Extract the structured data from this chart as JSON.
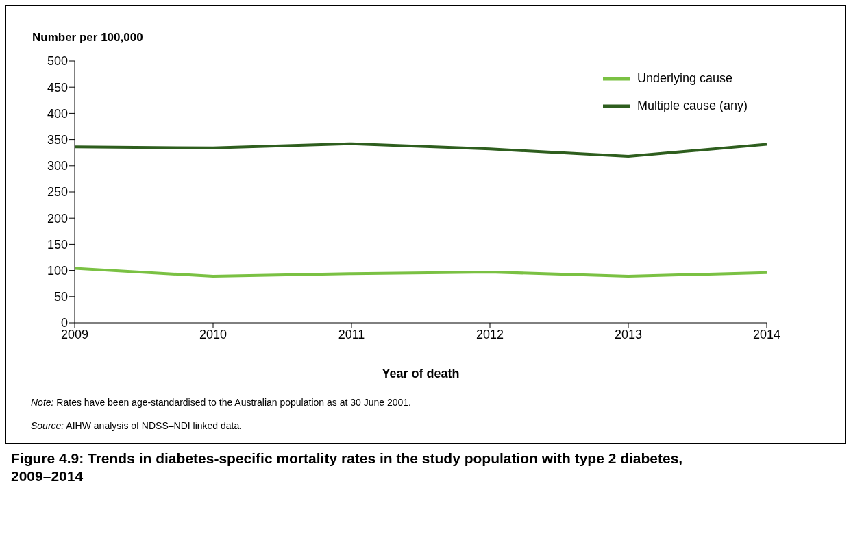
{
  "chart_data": {
    "type": "line",
    "title": "Figure 4.9: Trends in diabetes-specific mortality rates in the study population with type 2 diabetes, 2009–2014",
    "ylabel": "Number per 100,000",
    "xlabel": "Year of death",
    "x": [
      2009,
      2010,
      2011,
      2012,
      2013,
      2014
    ],
    "series": [
      {
        "name": "Underlying cause",
        "color": "#7ac143",
        "values": [
          104,
          89,
          94,
          97,
          89,
          96
        ]
      },
      {
        "name": "Multiple cause (any)",
        "color": "#2e5e1e",
        "values": [
          336,
          334,
          342,
          332,
          318,
          341
        ]
      }
    ],
    "xlim": [
      2009,
      2014
    ],
    "xticks": [
      2009,
      2010,
      2011,
      2012,
      2013,
      2014
    ],
    "ylim": [
      0,
      500
    ],
    "yticks": [
      0,
      50,
      100,
      150,
      200,
      250,
      300,
      350,
      400,
      450,
      500
    ],
    "grid": false,
    "legend": "top right",
    "marker": "none",
    "line_style": "solid",
    "annotations": [
      "Note: Rates have been age-standardised to the Australian population as at 30 June 2001.",
      "Source: AIHW analysis of NDSS–NDI linked data."
    ]
  }
}
